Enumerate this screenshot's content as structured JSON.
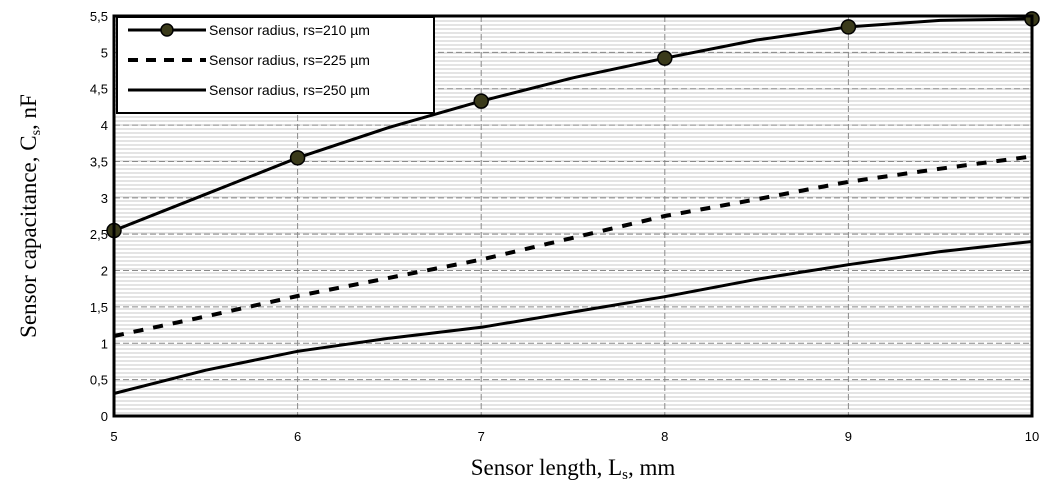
{
  "chart_data": {
    "type": "line",
    "xlabel": "Sensor length, L",
    "xlabel_sub": "s",
    "xlabel_unit": ", mm",
    "ylabel": "Sensor capacitance, C",
    "ylabel_sub": "s",
    "ylabel_unit": ", nF",
    "xlim": [
      5,
      10
    ],
    "ylim": [
      0,
      5.5
    ],
    "x_ticks": [
      "5",
      "6",
      "7",
      "8",
      "9",
      "10"
    ],
    "y_ticks": [
      "0",
      "0,5",
      "1",
      "1,5",
      "2",
      "2,5",
      "3",
      "3,5",
      "4",
      "4,5",
      "5",
      "5,5"
    ],
    "grid": true,
    "legend_position": "top-left",
    "series": [
      {
        "name": "Sensor  radius, rs=210 µm",
        "style": "solid-markers",
        "color": "#000000",
        "marker_color": "#3a3a1a",
        "x": [
          5,
          5.5,
          6,
          6.5,
          7,
          7.5,
          8,
          8.5,
          9,
          9.5,
          10
        ],
        "y": [
          2.55,
          3.05,
          3.55,
          3.97,
          4.33,
          4.65,
          4.92,
          5.17,
          5.35,
          5.44,
          5.46
        ],
        "marker_x": [
          5,
          6,
          7,
          8,
          9,
          10
        ],
        "marker_y": [
          2.55,
          3.55,
          4.33,
          4.92,
          5.35,
          5.46
        ]
      },
      {
        "name": "Sensor  radius, rs=225 µm",
        "style": "dashed",
        "color": "#000000",
        "x": [
          5,
          5.5,
          6,
          6.5,
          7,
          7.5,
          8,
          8.5,
          9,
          9.5,
          10
        ],
        "y": [
          1.1,
          1.37,
          1.65,
          1.9,
          2.15,
          2.45,
          2.75,
          2.98,
          3.22,
          3.4,
          3.57
        ]
      },
      {
        "name": "Sensor  radius, rs=250 µm",
        "style": "solid",
        "color": "#000000",
        "x": [
          5,
          5.5,
          6,
          6.5,
          7,
          7.5,
          8,
          8.5,
          9,
          9.5,
          10
        ],
        "y": [
          0.31,
          0.63,
          0.89,
          1.07,
          1.22,
          1.43,
          1.64,
          1.88,
          2.08,
          2.26,
          2.4
        ]
      }
    ]
  }
}
